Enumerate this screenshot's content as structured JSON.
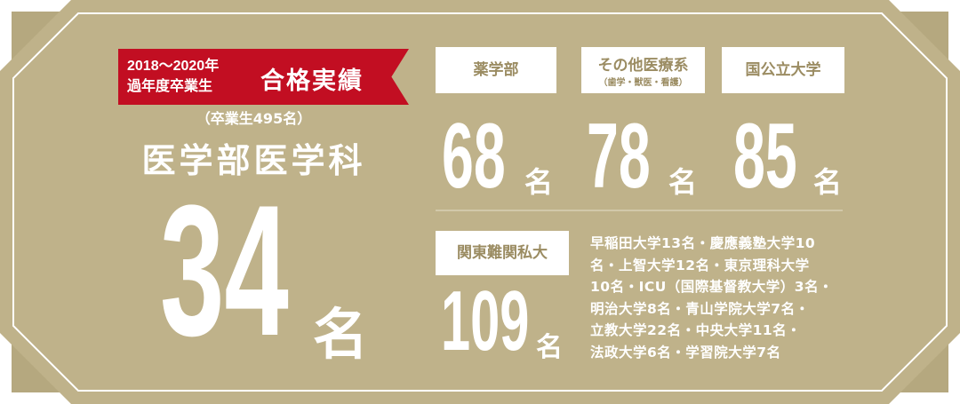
{
  "colors": {
    "background": "#bfb28a",
    "shadow": "#aa9d74",
    "badge": "#c20e22",
    "accent_text": "#9b8c62"
  },
  "badge": {
    "years": "2018〜2020年",
    "graduates": "過年度卒業生",
    "title": "合格実績"
  },
  "main": {
    "note": "（卒業生495名）",
    "department": "医学部医学科",
    "count": "34",
    "unit": "名"
  },
  "categories": [
    {
      "label": "薬学部",
      "sub": "",
      "count": "68",
      "unit": "名"
    },
    {
      "label": "その他医療系",
      "sub": "（歯学・獣医・看護）",
      "count": "78",
      "unit": "名"
    },
    {
      "label": "国公立大学",
      "sub": "",
      "count": "85",
      "unit": "名"
    }
  ],
  "private": {
    "label": "関東難関私大",
    "count": "109",
    "unit": "名",
    "lines": [
      "早稲田大学13名・慶應義塾大学10",
      "名・上智大学12名・東京理科大学",
      "10名・ICU（国際基督教大学）3名・",
      "明治大学8名・青山学院大学7名・",
      "立教大学22名・中央大学11名・",
      "法政大学6名・学習院大学7名"
    ]
  }
}
